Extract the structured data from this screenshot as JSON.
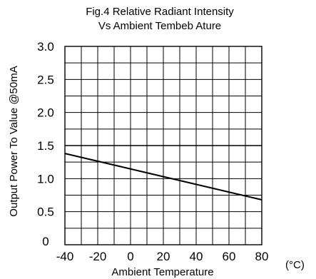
{
  "chart_data": {
    "type": "line",
    "title_lines": [
      "Fig.4 Relative Radiant Intensity",
      "Vs Ambient Tembeb Ature"
    ],
    "xlabel": "Ambient Temperature",
    "x_unit": "(°C)",
    "ylabel": "Output Power To Value @50mA",
    "xlim": [
      -40,
      80
    ],
    "ylim": [
      0,
      3.0
    ],
    "x_ticks": [
      -40,
      -20,
      0,
      20,
      40,
      60,
      80
    ],
    "x_tick_labels": [
      "-40",
      "-20",
      "0",
      "20",
      "40",
      "60",
      "80"
    ],
    "y_ticks": [
      0,
      0.5,
      1.0,
      1.5,
      2.0,
      2.5,
      3.0
    ],
    "y_tick_labels": [
      "0",
      "0.5",
      "1.0",
      "1.5",
      "2.0",
      "2.5",
      "3.0"
    ],
    "grid": true,
    "x_grid_step": 10,
    "y_grid_step": 0.25,
    "reference_line": 1.5,
    "series": [
      {
        "x": [
          -40,
          80
        ],
        "y": [
          1.38,
          0.68
        ]
      }
    ]
  }
}
